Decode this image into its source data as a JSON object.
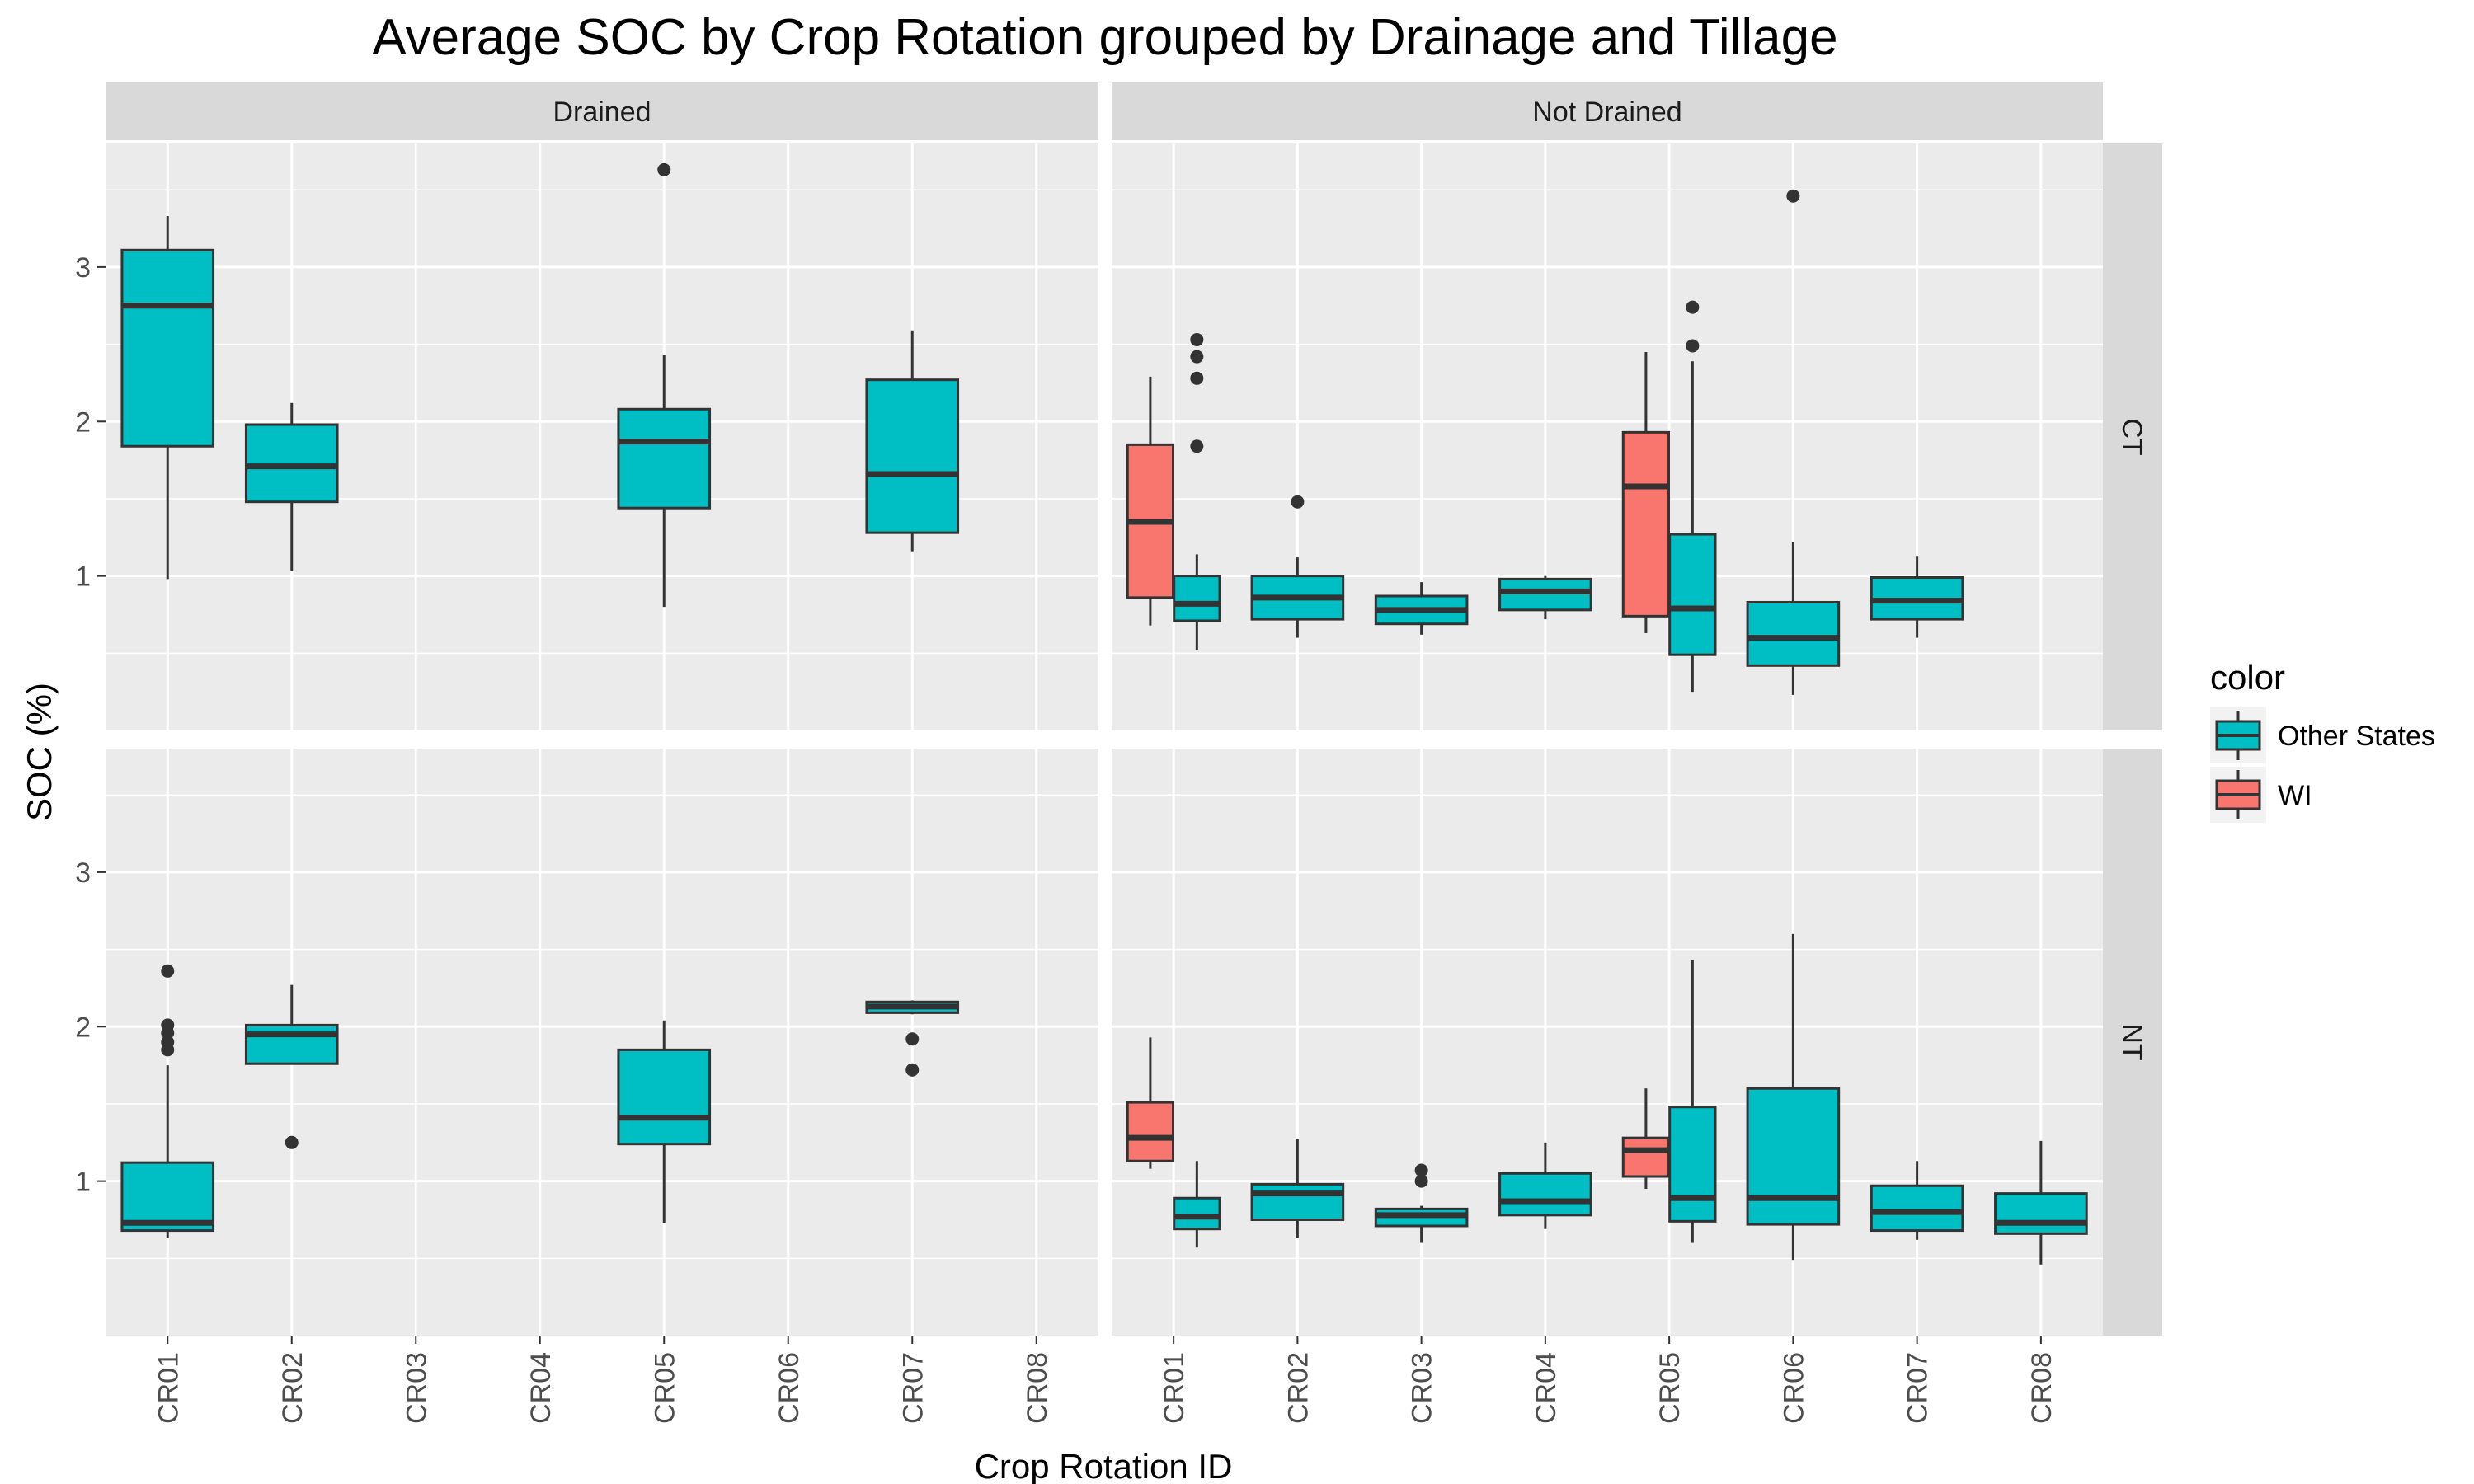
{
  "chart_data": {
    "type": "box",
    "title": "Average SOC by Crop Rotation grouped by Drainage and Tillage",
    "xlabel": "Crop Rotation ID",
    "ylabel": "SOC (%)",
    "ylim": [
      0,
      3.8
    ],
    "yticks": [
      1,
      2,
      3
    ],
    "categories": [
      "CR01",
      "CR02",
      "CR03",
      "CR04",
      "CR05",
      "CR06",
      "CR07",
      "CR08"
    ],
    "facet_columns": [
      "Drained",
      "Not Drained"
    ],
    "facet_rows": [
      "CT",
      "NT"
    ],
    "legend": {
      "title": "color",
      "position": "right",
      "entries": [
        {
          "label": "Other States",
          "color": "#00BFC4"
        },
        {
          "label": "WI",
          "color": "#F8766D"
        }
      ]
    },
    "grid": true,
    "panels": [
      {
        "column": "Drained",
        "row": "CT",
        "boxes": [
          {
            "category": "CR01",
            "group": "Other States",
            "min": 0.98,
            "q1": 1.84,
            "median": 2.75,
            "q3": 3.11,
            "max": 3.33,
            "outliers": []
          },
          {
            "category": "CR02",
            "group": "Other States",
            "min": 1.03,
            "q1": 1.48,
            "median": 1.71,
            "q3": 1.98,
            "max": 2.12,
            "outliers": []
          },
          {
            "category": "CR05",
            "group": "Other States",
            "min": 0.8,
            "q1": 1.44,
            "median": 1.87,
            "q3": 2.08,
            "max": 2.43,
            "outliers": [
              3.63
            ]
          },
          {
            "category": "CR07",
            "group": "Other States",
            "min": 1.16,
            "q1": 1.28,
            "median": 1.66,
            "q3": 2.27,
            "max": 2.59,
            "outliers": []
          }
        ]
      },
      {
        "column": "Not Drained",
        "row": "CT",
        "boxes": [
          {
            "category": "CR01",
            "group": "WI",
            "min": 0.68,
            "q1": 0.86,
            "median": 1.35,
            "q3": 1.85,
            "max": 2.29,
            "outliers": []
          },
          {
            "category": "CR01",
            "group": "Other States",
            "min": 0.52,
            "q1": 0.71,
            "median": 0.82,
            "q3": 1.0,
            "max": 1.14,
            "outliers": [
              1.84,
              2.28,
              2.42,
              2.53
            ]
          },
          {
            "category": "CR02",
            "group": "Other States",
            "min": 0.6,
            "q1": 0.72,
            "median": 0.86,
            "q3": 1.0,
            "max": 1.12,
            "outliers": [
              1.48
            ]
          },
          {
            "category": "CR03",
            "group": "Other States",
            "min": 0.62,
            "q1": 0.69,
            "median": 0.78,
            "q3": 0.87,
            "max": 0.96,
            "outliers": []
          },
          {
            "category": "CR04",
            "group": "Other States",
            "min": 0.72,
            "q1": 0.78,
            "median": 0.9,
            "q3": 0.98,
            "max": 1.0,
            "outliers": []
          },
          {
            "category": "CR05",
            "group": "WI",
            "min": 0.63,
            "q1": 0.74,
            "median": 1.58,
            "q3": 1.93,
            "max": 2.45,
            "outliers": []
          },
          {
            "category": "CR05",
            "group": "Other States",
            "min": 0.25,
            "q1": 0.49,
            "median": 0.79,
            "q3": 1.27,
            "max": 2.39,
            "outliers": [
              2.49,
              2.74
            ]
          },
          {
            "category": "CR06",
            "group": "Other States",
            "min": 0.23,
            "q1": 0.42,
            "median": 0.6,
            "q3": 0.83,
            "max": 1.22,
            "outliers": [
              3.46
            ]
          },
          {
            "category": "CR07",
            "group": "Other States",
            "min": 0.6,
            "q1": 0.72,
            "median": 0.84,
            "q3": 0.99,
            "max": 1.13,
            "outliers": []
          }
        ]
      },
      {
        "column": "Drained",
        "row": "NT",
        "boxes": [
          {
            "category": "CR01",
            "group": "Other States",
            "min": 0.63,
            "q1": 0.68,
            "median": 0.73,
            "q3": 1.12,
            "max": 1.75,
            "outliers": [
              1.85,
              1.9,
              1.96,
              2.01,
              2.36
            ]
          },
          {
            "category": "CR02",
            "group": "Other States",
            "min": 1.76,
            "q1": 1.76,
            "median": 1.95,
            "q3": 2.01,
            "max": 2.27,
            "outliers": [
              1.25
            ]
          },
          {
            "category": "CR05",
            "group": "Other States",
            "min": 0.73,
            "q1": 1.24,
            "median": 1.41,
            "q3": 1.85,
            "max": 2.04,
            "outliers": []
          },
          {
            "category": "CR07",
            "group": "Other States",
            "min": 2.08,
            "q1": 2.09,
            "median": 2.13,
            "q3": 2.16,
            "max": 2.17,
            "outliers": [
              1.72,
              1.92
            ]
          }
        ]
      },
      {
        "column": "Not Drained",
        "row": "NT",
        "boxes": [
          {
            "category": "CR01",
            "group": "WI",
            "min": 1.08,
            "q1": 1.13,
            "median": 1.28,
            "q3": 1.51,
            "max": 1.93,
            "outliers": []
          },
          {
            "category": "CR01",
            "group": "Other States",
            "min": 0.57,
            "q1": 0.69,
            "median": 0.77,
            "q3": 0.89,
            "max": 1.13,
            "outliers": []
          },
          {
            "category": "CR02",
            "group": "Other States",
            "min": 0.63,
            "q1": 0.75,
            "median": 0.92,
            "q3": 0.98,
            "max": 1.27,
            "outliers": []
          },
          {
            "category": "CR03",
            "group": "Other States",
            "min": 0.6,
            "q1": 0.71,
            "median": 0.78,
            "q3": 0.82,
            "max": 0.84,
            "outliers": [
              1.0,
              1.07
            ]
          },
          {
            "category": "CR04",
            "group": "Other States",
            "min": 0.69,
            "q1": 0.78,
            "median": 0.87,
            "q3": 1.05,
            "max": 1.25,
            "outliers": []
          },
          {
            "category": "CR05",
            "group": "WI",
            "min": 0.95,
            "q1": 1.03,
            "median": 1.2,
            "q3": 1.28,
            "max": 1.6,
            "outliers": []
          },
          {
            "category": "CR05",
            "group": "Other States",
            "min": 0.6,
            "q1": 0.74,
            "median": 0.89,
            "q3": 1.48,
            "max": 2.43,
            "outliers": []
          },
          {
            "category": "CR06",
            "group": "Other States",
            "min": 0.49,
            "q1": 0.72,
            "median": 0.89,
            "q3": 1.6,
            "max": 2.6,
            "outliers": []
          },
          {
            "category": "CR07",
            "group": "Other States",
            "min": 0.62,
            "q1": 0.68,
            "median": 0.8,
            "q3": 0.97,
            "max": 1.13,
            "outliers": []
          },
          {
            "category": "CR08",
            "group": "Other States",
            "min": 0.46,
            "q1": 0.66,
            "median": 0.73,
            "q3": 0.92,
            "max": 1.26,
            "outliers": []
          }
        ]
      }
    ]
  }
}
